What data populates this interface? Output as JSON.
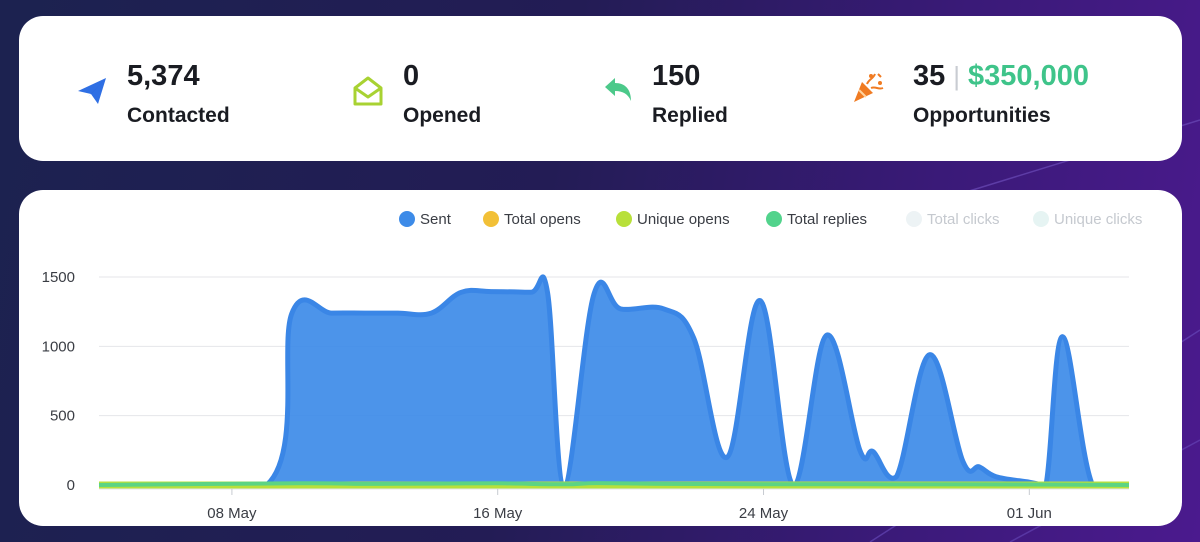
{
  "stats": [
    {
      "value": "5,374",
      "label": "Contacted",
      "icon": "paper-plane-icon",
      "color": "#2f6fe4"
    },
    {
      "value": "0",
      "label": "Opened",
      "icon": "open-envelope-icon",
      "color": "#a8d232"
    },
    {
      "value": "150",
      "label": "Replied",
      "icon": "reply-arrow-icon",
      "color": "#4cc98a"
    },
    {
      "value": "35",
      "value_extra": "$350,000",
      "label": "Opportunities",
      "icon": "party-popper-icon",
      "color": "#f07b22"
    }
  ],
  "legend": [
    {
      "label": "Sent",
      "color": "#3d8be8",
      "active": true
    },
    {
      "label": "Total opens",
      "color": "#f2c037",
      "active": true
    },
    {
      "label": "Unique opens",
      "color": "#b8e03a",
      "active": true
    },
    {
      "label": "Total replies",
      "color": "#52d38c",
      "active": true
    },
    {
      "label": "Total clicks",
      "color": "#edf3f5",
      "active": false
    },
    {
      "label": "Unique clicks",
      "color": "#e6f4f3",
      "active": false
    }
  ],
  "chart_data": {
    "type": "area",
    "y_ticks": [
      0,
      500,
      1000,
      1500
    ],
    "ylim": [
      0,
      1500
    ],
    "x_tick_labels": [
      "08 May",
      "16 May",
      "24 May",
      "01 Jun"
    ],
    "x_tick_days": [
      8,
      16,
      24,
      32
    ],
    "xlim_days": [
      4,
      35
    ],
    "series": [
      {
        "name": "Sent",
        "color": "#3d8be8",
        "points": [
          [
            4,
            0
          ],
          [
            9.05,
            0
          ],
          [
            9.8,
            1235
          ],
          [
            11,
            1240
          ],
          [
            12,
            1240
          ],
          [
            13,
            1240
          ],
          [
            14,
            1240
          ],
          [
            14.9,
            1390
          ],
          [
            15.8,
            1395
          ],
          [
            17,
            1390
          ],
          [
            17.5,
            1390
          ],
          [
            18.0,
            0
          ],
          [
            18.9,
            1380
          ],
          [
            19.7,
            1270
          ],
          [
            21,
            1270
          ],
          [
            21.9,
            1060
          ],
          [
            22.9,
            200
          ],
          [
            23.9,
            1330
          ],
          [
            24.9,
            0
          ],
          [
            25.9,
            1080
          ],
          [
            26.9,
            250
          ],
          [
            27.3,
            240
          ],
          [
            28,
            60
          ],
          [
            29.0,
            940
          ],
          [
            30.0,
            170
          ],
          [
            30.5,
            130
          ],
          [
            31.0,
            60
          ],
          [
            32,
            20
          ],
          [
            32.5,
            0
          ],
          [
            33.0,
            1070
          ],
          [
            33.9,
            0
          ],
          [
            35,
            0
          ]
        ]
      },
      {
        "name": "Total opens",
        "color": "#f2c037",
        "points": [
          [
            4,
            0
          ],
          [
            35,
            0
          ]
        ]
      },
      {
        "name": "Unique opens",
        "color": "#b8e03a",
        "points": [
          [
            4,
            0
          ],
          [
            35,
            0
          ]
        ]
      },
      {
        "name": "Total replies",
        "color": "#52d38c",
        "points": [
          [
            4,
            0
          ],
          [
            10,
            12
          ],
          [
            12,
            8
          ],
          [
            14,
            10
          ],
          [
            16,
            12
          ],
          [
            18,
            5
          ],
          [
            19,
            14
          ],
          [
            21,
            8
          ],
          [
            24,
            6
          ],
          [
            27,
            5
          ],
          [
            30,
            4
          ],
          [
            33,
            3
          ],
          [
            35,
            0
          ]
        ]
      }
    ]
  }
}
